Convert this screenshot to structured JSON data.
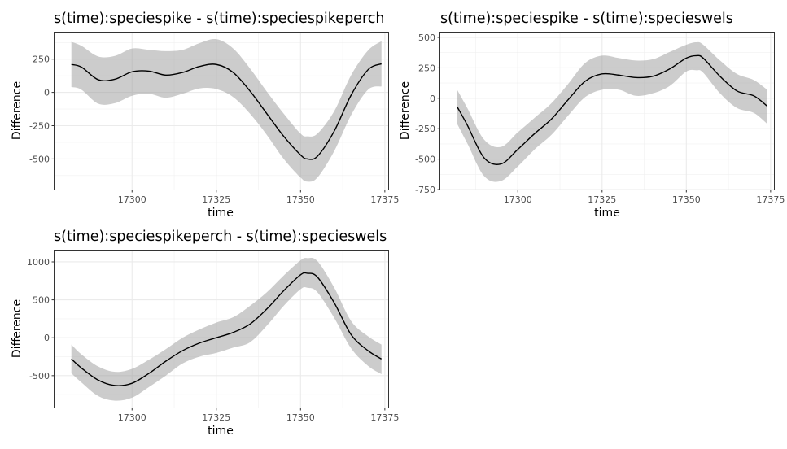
{
  "chart_data": [
    {
      "type": "line",
      "title": "s(time):speciespike - s(time):speciespikeperch",
      "xlabel": "time",
      "ylabel": "Difference",
      "xlim": [
        17277,
        17376
      ],
      "ylim": [
        -730,
        450
      ],
      "xticks": [
        17300,
        17325,
        17350,
        17375
      ],
      "xtick_labels": [
        "17300",
        "17325",
        "17350",
        "17375"
      ],
      "yticks": [
        -500,
        -250,
        0,
        250
      ],
      "ytick_labels": [
        "-500",
        "-250",
        "0",
        "250"
      ],
      "grid": true,
      "series": [
        {
          "x": [
            17282,
            17285,
            17290,
            17295,
            17300,
            17305,
            17310,
            17315,
            17320,
            17325,
            17330,
            17335,
            17340,
            17345,
            17350,
            17352,
            17355,
            17360,
            17365,
            17370,
            17374
          ],
          "y": [
            210,
            190,
            95,
            100,
            155,
            160,
            130,
            150,
            195,
            210,
            150,
            10,
            -160,
            -330,
            -470,
            -500,
            -480,
            -290,
            -20,
            170,
            215
          ],
          "lower": [
            40,
            20,
            -85,
            -80,
            -25,
            -10,
            -40,
            -10,
            30,
            25,
            -35,
            -160,
            -320,
            -500,
            -640,
            -670,
            -640,
            -440,
            -170,
            20,
            45
          ],
          "upper": [
            380,
            350,
            270,
            275,
            330,
            320,
            310,
            320,
            370,
            400,
            330,
            180,
            5,
            -160,
            -310,
            -330,
            -310,
            -140,
            130,
            315,
            385
          ]
        }
      ]
    },
    {
      "type": "line",
      "title": "s(time):speciespike - s(time):specieswels",
      "xlabel": "time",
      "ylabel": "Difference",
      "xlim": [
        17277,
        17376
      ],
      "ylim": [
        -750,
        540
      ],
      "xticks": [
        17300,
        17325,
        17350,
        17375
      ],
      "xtick_labels": [
        "17300",
        "17325",
        "17350",
        "17375"
      ],
      "yticks": [
        -750,
        -500,
        -250,
        0,
        250,
        500
      ],
      "ytick_labels": [
        "-750",
        "-500",
        "-250",
        "0",
        "250",
        "500"
      ],
      "grid": true,
      "series": [
        {
          "x": [
            17282,
            17285,
            17290,
            17295,
            17300,
            17305,
            17310,
            17315,
            17320,
            17325,
            17330,
            17335,
            17340,
            17345,
            17350,
            17353,
            17355,
            17360,
            17365,
            17370,
            17374
          ],
          "y": [
            -70,
            -220,
            -490,
            -540,
            -420,
            -290,
            -170,
            -10,
            140,
            200,
            190,
            170,
            180,
            240,
            330,
            350,
            330,
            180,
            60,
            20,
            -65
          ],
          "lower": [
            -210,
            -370,
            -640,
            -680,
            -560,
            -420,
            -300,
            -140,
            10,
            70,
            70,
            20,
            40,
            100,
            220,
            230,
            210,
            40,
            -80,
            -120,
            -210
          ],
          "upper": [
            70,
            -80,
            -340,
            -400,
            -280,
            -160,
            -40,
            120,
            290,
            350,
            330,
            310,
            320,
            380,
            440,
            460,
            440,
            310,
            200,
            150,
            70
          ]
        }
      ]
    },
    {
      "type": "line",
      "title": "s(time):speciespikeperch - s(time):specieswels",
      "xlabel": "time",
      "ylabel": "Difference",
      "xlim": [
        17277,
        17376
      ],
      "ylim": [
        -920,
        1150
      ],
      "xticks": [
        17300,
        17325,
        17350,
        17375
      ],
      "xtick_labels": [
        "17300",
        "17325",
        "17350",
        "17375"
      ],
      "yticks": [
        -500,
        0,
        500,
        1000
      ],
      "ytick_labels": [
        "-500",
        "0",
        "500",
        "1000"
      ],
      "grid": true,
      "series": [
        {
          "x": [
            17282,
            17285,
            17290,
            17295,
            17300,
            17305,
            17310,
            17315,
            17320,
            17325,
            17330,
            17335,
            17340,
            17345,
            17350,
            17352,
            17355,
            17360,
            17365,
            17370,
            17374
          ],
          "y": [
            -280,
            -400,
            -560,
            -630,
            -600,
            -470,
            -310,
            -170,
            -70,
            0,
            70,
            180,
            380,
            620,
            830,
            850,
            800,
            460,
            40,
            -170,
            -280
          ],
          "lower": [
            -470,
            -590,
            -770,
            -830,
            -790,
            -650,
            -500,
            -340,
            -250,
            -200,
            -130,
            -60,
            160,
            420,
            640,
            660,
            600,
            260,
            -140,
            -370,
            -480
          ],
          "upper": [
            -90,
            -220,
            -380,
            -450,
            -410,
            -290,
            -150,
            0,
            110,
            200,
            270,
            420,
            600,
            820,
            1020,
            1050,
            1010,
            660,
            220,
            20,
            -90
          ]
        }
      ]
    }
  ]
}
